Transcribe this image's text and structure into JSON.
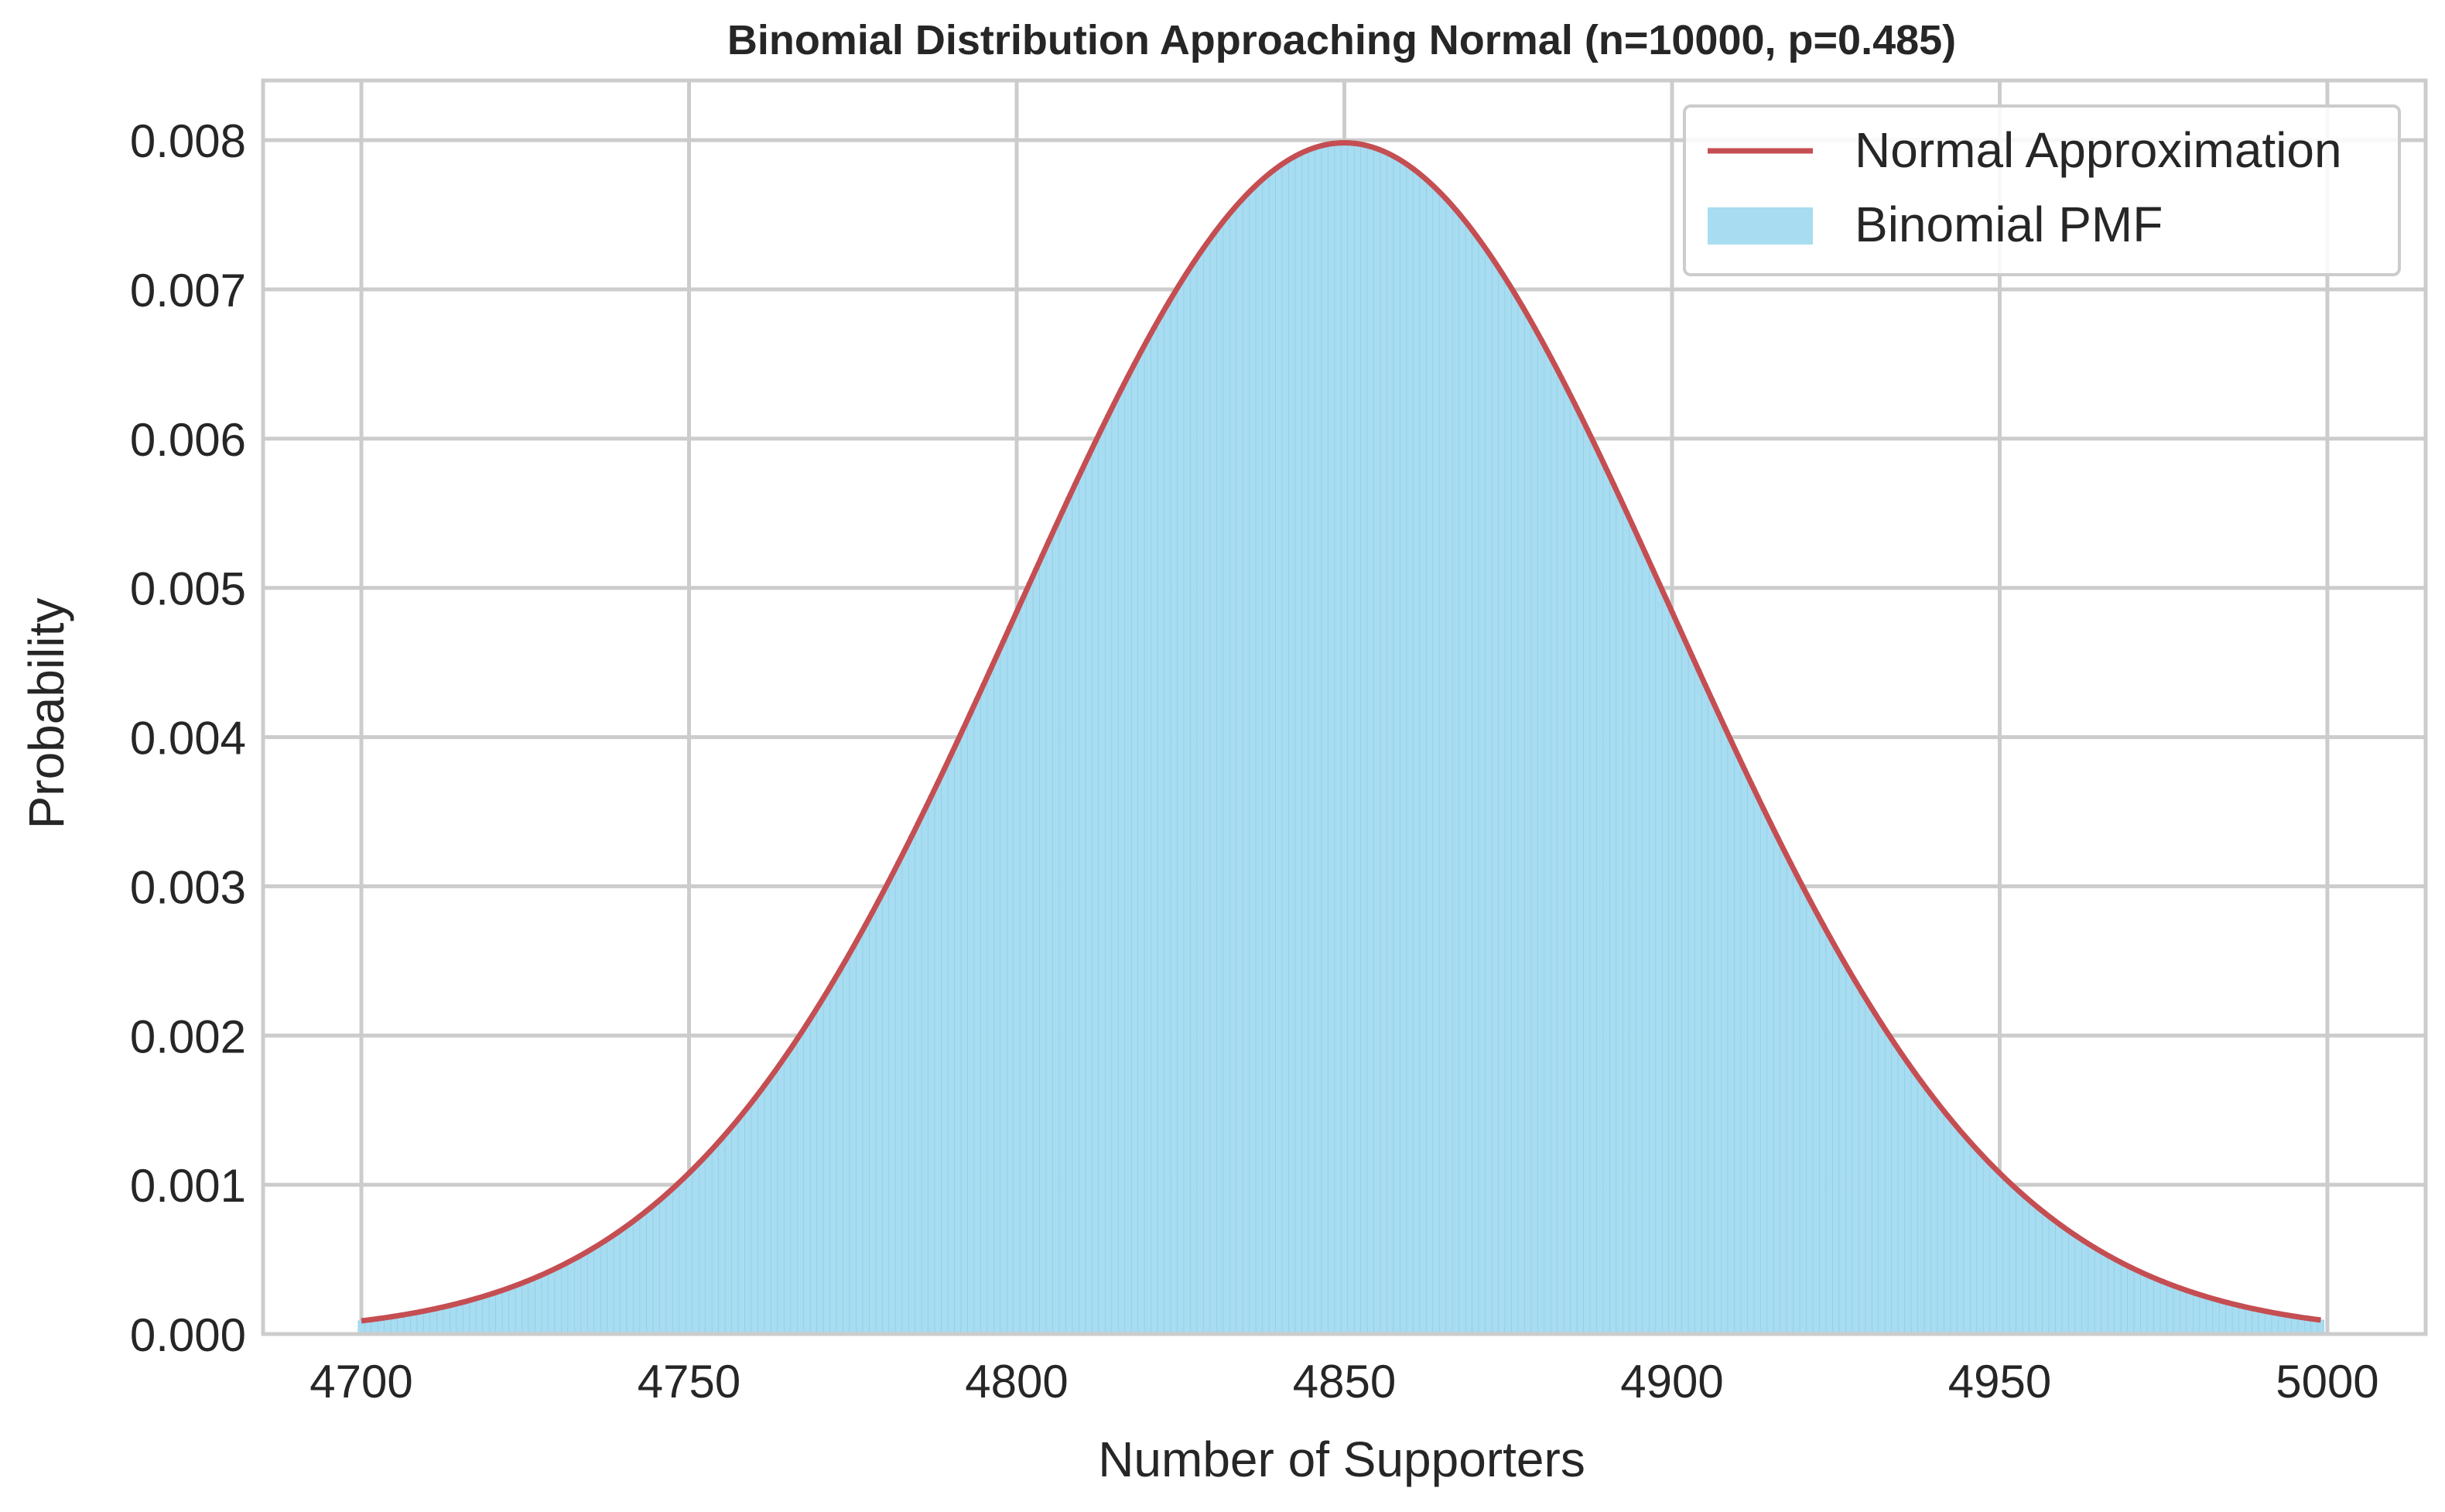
{
  "chart_data": {
    "type": "area",
    "title": "Binomial Distribution Approaching Normal (n=10000, p=0.485)",
    "xlabel": "Number of Supporters",
    "ylabel": "Probability",
    "xlim": [
      4685,
      5015
    ],
    "ylim": [
      0,
      0.0084
    ],
    "x_ticks": [
      4700,
      4750,
      4800,
      4850,
      4900,
      4950,
      5000
    ],
    "y_ticks": [
      0.0,
      0.001,
      0.002,
      0.003,
      0.004,
      0.005,
      0.006,
      0.007,
      0.008
    ],
    "x_tick_labels": [
      "4700",
      "4750",
      "4800",
      "4850",
      "4900",
      "4950",
      "5000"
    ],
    "y_tick_labels": [
      "0.000",
      "0.001",
      "0.002",
      "0.003",
      "0.004",
      "0.005",
      "0.006",
      "0.007",
      "0.008"
    ],
    "grid": true,
    "legend_position": "top-right",
    "distribution": {
      "n": 10000,
      "p": 0.485,
      "x_range": [
        4700,
        4999
      ]
    },
    "series": [
      {
        "name": "Normal Approximation",
        "kind": "line",
        "color": "#c44e52",
        "x": [
          4700,
          4710,
          4720,
          4730,
          4740,
          4750,
          4760,
          4770,
          4780,
          4790,
          4800,
          4810,
          4820,
          4830,
          4840,
          4850,
          4860,
          4870,
          4880,
          4890,
          4900,
          4910,
          4920,
          4930,
          4940,
          4950,
          4960,
          4970,
          4980,
          4990,
          4999
        ],
        "values": [
          8.7e-05,
          0.00017,
          0.00031,
          0.00052,
          0.00082,
          0.00123,
          0.00175,
          0.00237,
          0.00306,
          0.00379,
          0.00485,
          0.00585,
          0.0067,
          0.00738,
          0.00783,
          0.00798,
          0.00783,
          0.00738,
          0.0067,
          0.00585,
          0.00485,
          0.00379,
          0.00306,
          0.00237,
          0.00175,
          0.00123,
          0.00082,
          0.00052,
          0.00031,
          0.00017,
          9.2e-05
        ]
      },
      {
        "name": "Binomial PMF",
        "kind": "bar",
        "color": "#a8dcf0",
        "edge_color": "#87ceeb"
      }
    ]
  }
}
